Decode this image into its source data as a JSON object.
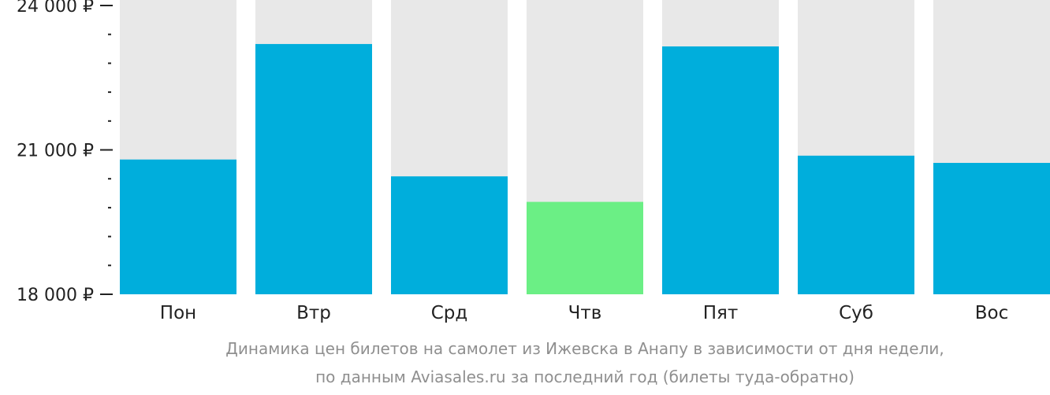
{
  "chart_data": {
    "type": "bar",
    "categories": [
      "Пон",
      "Втр",
      "Срд",
      "Чтв",
      "Пят",
      "Суб",
      "Вос"
    ],
    "values": [
      20800,
      23200,
      20450,
      19920,
      23150,
      20880,
      20730
    ],
    "highlight_index": 3,
    "ylim": [
      18000,
      24000
    ],
    "yticks": [
      18000,
      21000,
      24000
    ],
    "ytick_labels": [
      "18 000 ₽",
      "21 000 ₽",
      "24 000 ₽"
    ],
    "minor_ticks_per_interval": 5,
    "grid": false,
    "colors": {
      "bar": "#00AEDC",
      "highlight": "#6BEF85",
      "track": "#E8E8E8",
      "axis": "#222222",
      "caption": "#8F8F8F"
    }
  },
  "caption": {
    "line1": "Динамика цен билетов на самолет из Ижевска в Анапу в зависимости от дня недели,",
    "line2": "по данным Aviasales.ru за последний год (билеты туда-обратно)"
  }
}
